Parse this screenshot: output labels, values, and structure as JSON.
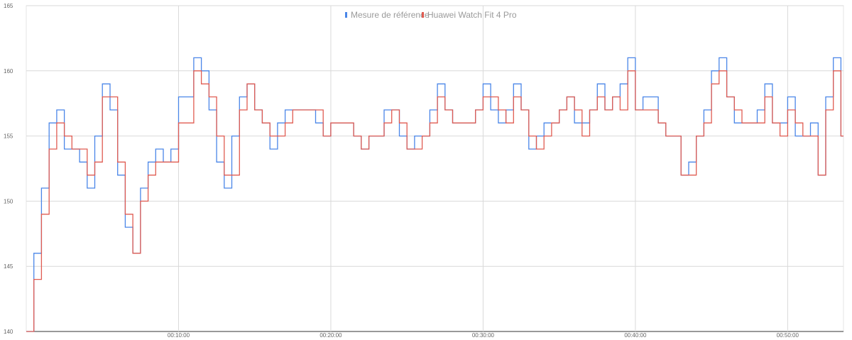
{
  "chart_data": {
    "type": "line",
    "title": "",
    "xlabel": "",
    "ylabel": "",
    "ylim": [
      140,
      165
    ],
    "xlim": [
      "00:00:00",
      "00:53:40"
    ],
    "grid": true,
    "legend_position": "top-center",
    "x_ticks": [
      "00:10:00",
      "00:20:00",
      "00:30:00",
      "00:40:00",
      "00:50:00"
    ],
    "y_ticks": [
      "140",
      "145",
      "150",
      "155",
      "160",
      "165"
    ],
    "x": [
      "00:00:00",
      "00:00:30",
      "00:01:00",
      "00:01:30",
      "00:02:00",
      "00:02:30",
      "00:03:00",
      "00:03:30",
      "00:04:00",
      "00:04:30",
      "00:05:00",
      "00:05:30",
      "00:06:00",
      "00:06:30",
      "00:07:00",
      "00:07:30",
      "00:08:00",
      "00:08:30",
      "00:09:00",
      "00:09:30",
      "00:10:00",
      "00:10:30",
      "00:11:00",
      "00:11:30",
      "00:12:00",
      "00:12:30",
      "00:13:00",
      "00:13:30",
      "00:14:00",
      "00:14:30",
      "00:15:00",
      "00:15:30",
      "00:16:00",
      "00:16:30",
      "00:17:00",
      "00:17:30",
      "00:18:00",
      "00:18:30",
      "00:19:00",
      "00:19:30",
      "00:20:00",
      "00:20:30",
      "00:21:00",
      "00:21:30",
      "00:22:00",
      "00:22:30",
      "00:23:00",
      "00:23:30",
      "00:24:00",
      "00:24:30",
      "00:25:00",
      "00:25:30",
      "00:26:00",
      "00:26:30",
      "00:27:00",
      "00:27:30",
      "00:28:00",
      "00:28:30",
      "00:29:00",
      "00:29:30",
      "00:30:00",
      "00:30:30",
      "00:31:00",
      "00:31:30",
      "00:32:00",
      "00:32:30",
      "00:33:00",
      "00:33:30",
      "00:34:00",
      "00:34:30",
      "00:35:00",
      "00:35:30",
      "00:36:00",
      "00:36:30",
      "00:37:00",
      "00:37:30",
      "00:38:00",
      "00:38:30",
      "00:39:00",
      "00:39:30",
      "00:40:00",
      "00:40:30",
      "00:41:00",
      "00:41:30",
      "00:42:00",
      "00:42:30",
      "00:43:00",
      "00:43:30",
      "00:44:00",
      "00:44:30",
      "00:45:00",
      "00:45:30",
      "00:46:00",
      "00:46:30",
      "00:47:00",
      "00:47:30",
      "00:48:00",
      "00:48:30",
      "00:49:00",
      "00:49:30",
      "00:50:00",
      "00:50:30",
      "00:51:00",
      "00:51:30",
      "00:52:00",
      "00:52:30",
      "00:53:00",
      "00:53:30"
    ],
    "series": [
      {
        "name": "Mesure de référence",
        "color": "#4a86e8",
        "values": [
          140,
          146,
          151,
          156,
          157,
          154,
          154,
          153,
          151,
          155,
          159,
          157,
          152,
          148,
          146,
          151,
          153,
          154,
          153,
          154,
          158,
          158,
          161,
          160,
          157,
          153,
          151,
          155,
          158,
          159,
          157,
          156,
          154,
          156,
          157,
          157,
          157,
          157,
          156,
          155,
          156,
          156,
          156,
          155,
          154,
          155,
          155,
          157,
          157,
          155,
          154,
          155,
          155,
          157,
          159,
          157,
          156,
          156,
          156,
          157,
          159,
          157,
          156,
          157,
          159,
          157,
          154,
          155,
          156,
          156,
          157,
          158,
          156,
          156,
          157,
          159,
          157,
          158,
          159,
          161,
          157,
          158,
          158,
          156,
          155,
          155,
          152,
          153,
          155,
          157,
          160,
          161,
          158,
          156,
          156,
          156,
          157,
          159,
          156,
          156,
          158,
          155,
          155,
          156,
          152,
          158,
          161,
          155
        ]
      },
      {
        "name": "Huawei Watch Fit 4 Pro",
        "color": "#e05c52",
        "values": [
          140,
          144,
          149,
          154,
          156,
          155,
          154,
          154,
          152,
          153,
          158,
          158,
          153,
          149,
          146,
          150,
          152,
          153,
          153,
          153,
          156,
          156,
          160,
          159,
          158,
          155,
          152,
          152,
          157,
          159,
          157,
          156,
          155,
          155,
          156,
          157,
          157,
          157,
          157,
          155,
          156,
          156,
          156,
          155,
          154,
          155,
          155,
          156,
          157,
          156,
          154,
          154,
          155,
          156,
          158,
          157,
          156,
          156,
          156,
          157,
          158,
          158,
          157,
          156,
          158,
          157,
          155,
          154,
          155,
          156,
          157,
          158,
          157,
          155,
          157,
          158,
          157,
          158,
          157,
          160,
          157,
          157,
          157,
          156,
          155,
          155,
          152,
          152,
          155,
          156,
          159,
          160,
          158,
          157,
          156,
          156,
          156,
          158,
          156,
          155,
          157,
          156,
          155,
          155,
          152,
          157,
          160,
          155
        ]
      }
    ]
  }
}
